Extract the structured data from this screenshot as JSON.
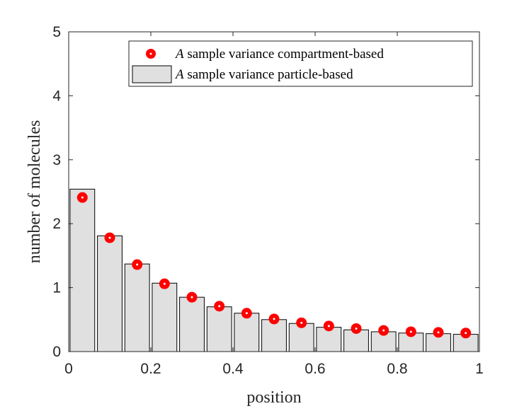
{
  "chart_data": {
    "type": "bar",
    "xlabel": "position",
    "ylabel": "number of molecules",
    "xlim": [
      0,
      1
    ],
    "ylim": [
      0,
      5
    ],
    "xticks": [
      "0",
      "0.2",
      "0.4",
      "0.6",
      "0.8",
      "1"
    ],
    "yticks": [
      "0",
      "1",
      "2",
      "3",
      "4",
      "5"
    ],
    "grid": false,
    "legend_position": "top-right",
    "x": [
      0.0333,
      0.1,
      0.1667,
      0.2333,
      0.3,
      0.3667,
      0.4333,
      0.5,
      0.5667,
      0.6333,
      0.7,
      0.7667,
      0.8333,
      0.9,
      0.9667
    ],
    "series": [
      {
        "name": "A sample variance compartment-based",
        "legend_symbol": "A",
        "legend_text": " sample variance compartment-based",
        "kind": "scatter",
        "marker": "circle",
        "color": "#ff0000",
        "values": [
          2.41,
          1.78,
          1.36,
          1.06,
          0.85,
          0.71,
          0.6,
          0.51,
          0.45,
          0.4,
          0.36,
          0.33,
          0.31,
          0.3,
          0.29
        ]
      },
      {
        "name": "A sample variance particle-based",
        "legend_symbol": "A",
        "legend_text": " sample variance particle-based",
        "kind": "bar",
        "color": "#e0e0e0",
        "edge_color": "#000000",
        "values": [
          2.54,
          1.81,
          1.37,
          1.07,
          0.85,
          0.7,
          0.6,
          0.5,
          0.44,
          0.38,
          0.34,
          0.31,
          0.29,
          0.28,
          0.27
        ]
      }
    ]
  }
}
